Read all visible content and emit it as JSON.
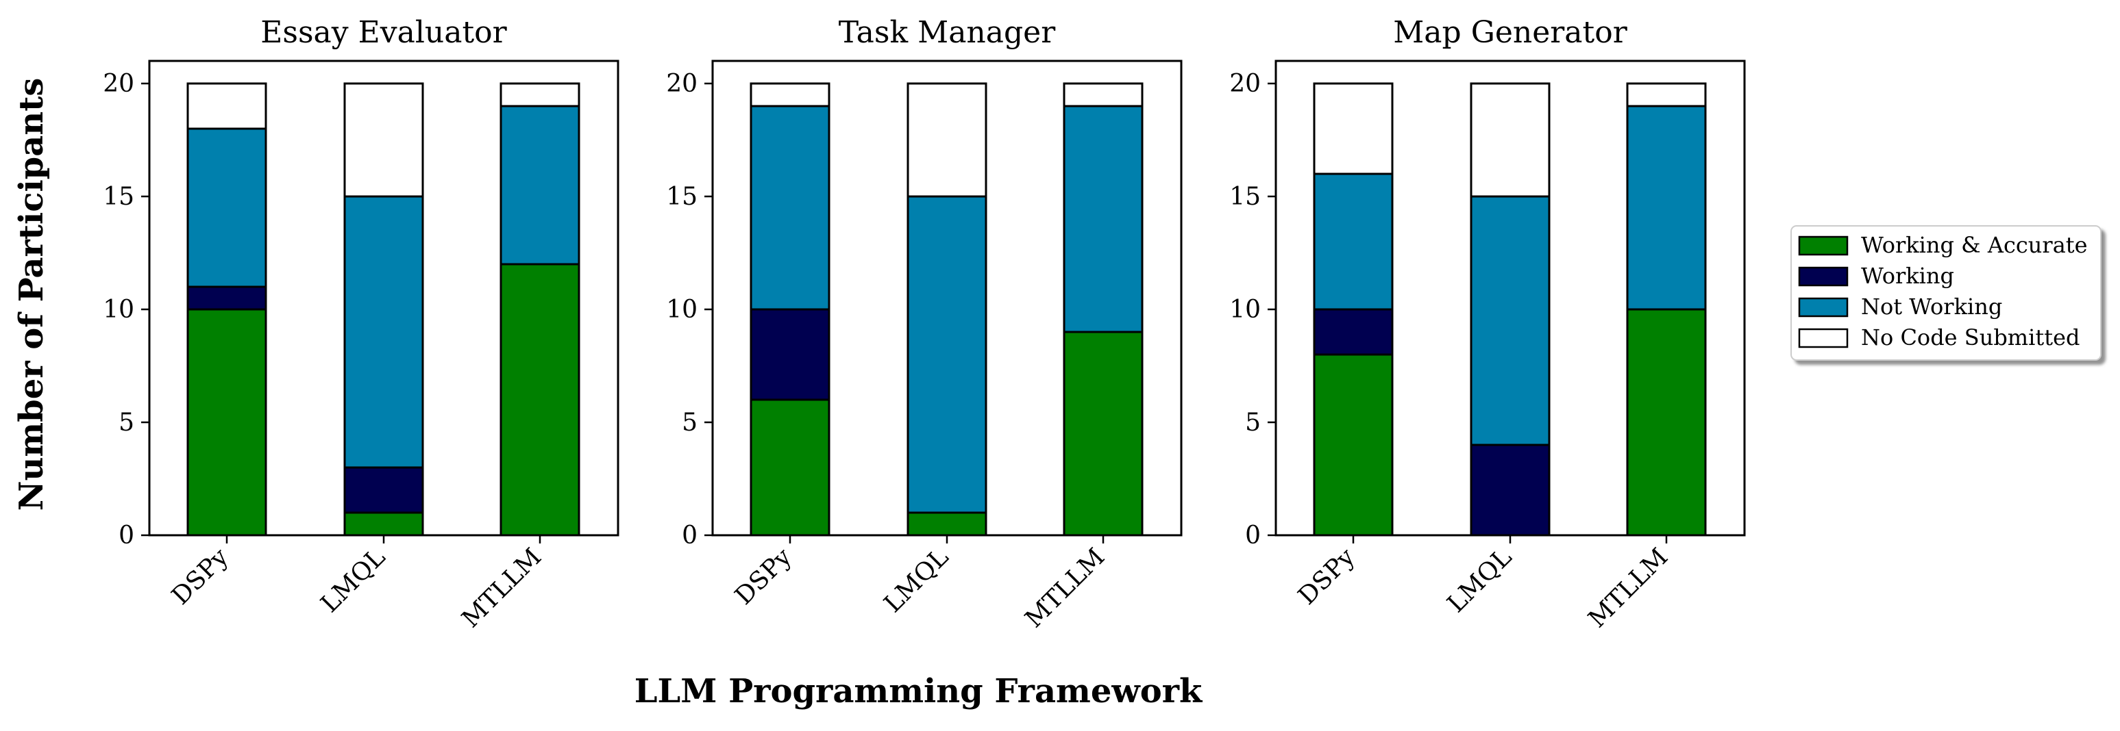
{
  "chart_data": {
    "type": "bar",
    "stacked": true,
    "xlabel": "LLM Programming Framework",
    "ylabel": "Number of Participants",
    "ylim": [
      0,
      21
    ],
    "yticks": [
      0,
      5,
      10,
      15,
      20
    ],
    "grid": false,
    "legend_position": "right",
    "legend": [
      {
        "name": "Working & Accurate",
        "color": "#008000"
      },
      {
        "name": "Working",
        "color": "#000050"
      },
      {
        "name": "Not Working",
        "color": "#0080ad"
      },
      {
        "name": "No Code Submitted",
        "color": "#ffffff"
      }
    ],
    "panels": [
      {
        "title": "Essay Evaluator",
        "categories": [
          "DSPy",
          "LMQL",
          "MTLLM"
        ],
        "series": [
          {
            "name": "Working & Accurate",
            "values": [
              10,
              1,
              12
            ]
          },
          {
            "name": "Working",
            "values": [
              1,
              2,
              0
            ]
          },
          {
            "name": "Not Working",
            "values": [
              7,
              12,
              7
            ]
          },
          {
            "name": "No Code Submitted",
            "values": [
              2,
              5,
              1
            ]
          }
        ]
      },
      {
        "title": "Task Manager",
        "categories": [
          "DSPy",
          "LMQL",
          "MTLLM"
        ],
        "series": [
          {
            "name": "Working & Accurate",
            "values": [
              6,
              1,
              9
            ]
          },
          {
            "name": "Working",
            "values": [
              4,
              0,
              0
            ]
          },
          {
            "name": "Not Working",
            "values": [
              9,
              14,
              10
            ]
          },
          {
            "name": "No Code Submitted",
            "values": [
              1,
              5,
              1
            ]
          }
        ]
      },
      {
        "title": "Map Generator",
        "categories": [
          "DSPy",
          "LMQL",
          "MTLLM"
        ],
        "series": [
          {
            "name": "Working & Accurate",
            "values": [
              8,
              0,
              10
            ]
          },
          {
            "name": "Working",
            "values": [
              2,
              4,
              0
            ]
          },
          {
            "name": "Not Working",
            "values": [
              6,
              11,
              9
            ]
          },
          {
            "name": "No Code Submitted",
            "values": [
              4,
              5,
              1
            ]
          }
        ]
      }
    ]
  }
}
